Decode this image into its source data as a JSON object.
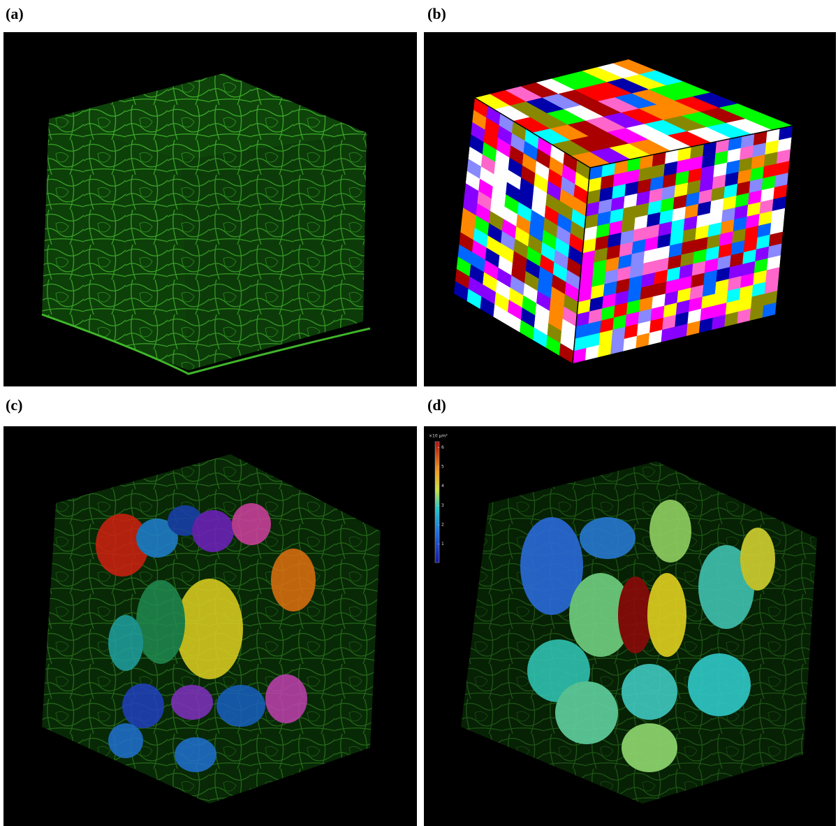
{
  "panels": [
    {
      "label": "(a)"
    },
    {
      "label": "(b)"
    },
    {
      "label": "(c)"
    },
    {
      "label": "(d)",
      "colorbar": {
        "label": "×10 μm³",
        "lim": [
          0.05,
          6.3
        ],
        "ticks": [
          1,
          2,
          3,
          4,
          5,
          6
        ]
      }
    }
  ]
}
